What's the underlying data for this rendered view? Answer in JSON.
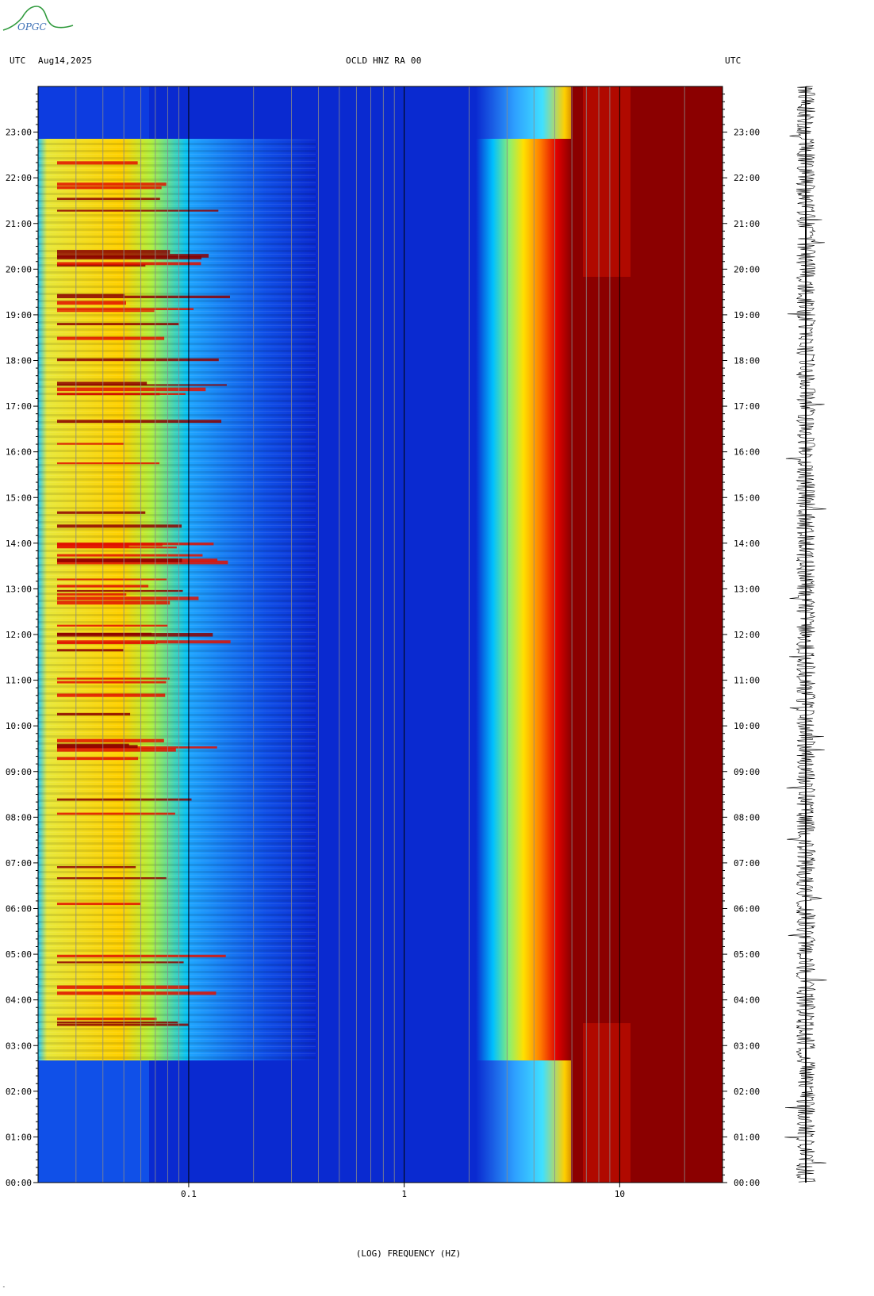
{
  "header": {
    "left_tz": "UTC",
    "date": "Aug14,2025",
    "station": "OCLD HNZ RA 00",
    "right_tz": "UTC"
  },
  "logo": {
    "text": "OPGC",
    "color": "#2f9a3c"
  },
  "chart_data": {
    "type": "heatmap",
    "title": "OCLD HNZ RA 00",
    "xlabel": "(LOG) FREQUENCY (HZ)",
    "xscale": "log",
    "xlim": [
      0.02,
      30
    ],
    "x_tick_labels": [
      "0.1",
      "1",
      "10"
    ],
    "x_ticks": [
      0.1,
      1,
      10
    ],
    "x_gridlines": [
      0.03,
      0.04,
      0.05,
      0.06,
      0.07,
      0.08,
      0.09,
      0.1,
      0.2,
      0.3,
      0.4,
      0.5,
      0.6,
      0.7,
      0.8,
      0.9,
      1,
      2,
      3,
      4,
      5,
      6,
      7,
      8,
      9,
      10,
      20
    ],
    "ylabel": "UTC",
    "ylim_hours": [
      0,
      24
    ],
    "y_tick_labels": [
      "00:00",
      "01:00",
      "02:00",
      "03:00",
      "04:00",
      "05:00",
      "06:00",
      "07:00",
      "08:00",
      "09:00",
      "10:00",
      "11:00",
      "12:00",
      "13:00",
      "14:00",
      "15:00",
      "16:00",
      "17:00",
      "18:00",
      "19:00",
      "20:00",
      "21:00",
      "22:00",
      "23:00"
    ],
    "colormap": [
      "#00008b",
      "#0000ff",
      "#00bfff",
      "#00ffff",
      "#adff2f",
      "#ffff00",
      "#ffa500",
      "#ff0000",
      "#8b0000"
    ],
    "description_regions": [
      {
        "name": "high-energy microseism band",
        "f_range": [
          0.02,
          0.1
        ],
        "hours": [
          2.7,
          23
        ]
      },
      {
        "name": "quiet band",
        "f_range": [
          0.3,
          2
        ],
        "hours": [
          0,
          24
        ]
      },
      {
        "name": "cultural noise band",
        "f_range": [
          3,
          30
        ],
        "hours": [
          0,
          24
        ]
      }
    ],
    "trace": {
      "type": "seismogram",
      "color": "#000000"
    }
  },
  "xaxis": {
    "label": "(LOG) FREQUENCY (HZ)"
  },
  "footer": {
    "mark": "˜"
  }
}
